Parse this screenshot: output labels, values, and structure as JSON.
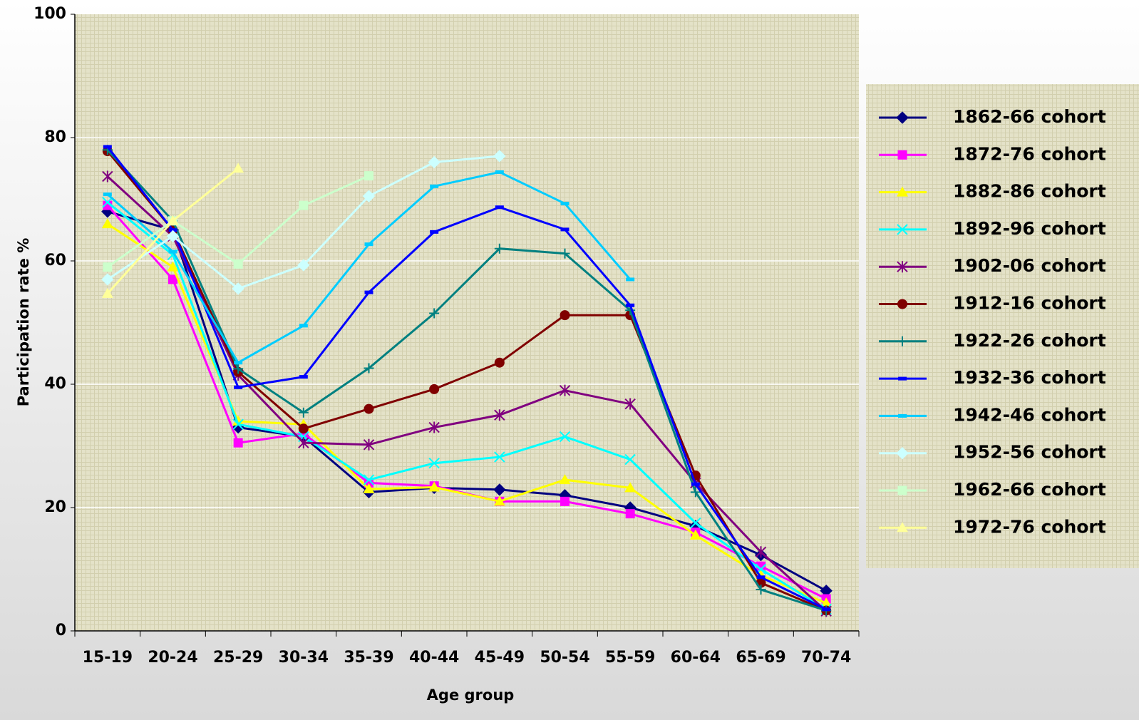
{
  "chart_data": {
    "type": "line",
    "x_label": "Age group",
    "y_label": "Participation rate %",
    "categories": [
      "15-19",
      "20-24",
      "25-29",
      "30-34",
      "35-39",
      "40-44",
      "45-49",
      "50-54",
      "55-59",
      "60-64",
      "65-69",
      "70-74"
    ],
    "ylim": [
      0,
      100
    ],
    "yticks": [
      0,
      20,
      40,
      60,
      80,
      100
    ],
    "grid": true,
    "legend": "right",
    "series": [
      {
        "name": "1862-66 cohort",
        "color": "#000080",
        "marker": "diamond",
        "values": [
          68,
          65,
          33,
          31.5,
          22.5,
          23.2,
          22.9,
          22,
          20,
          17,
          12.3,
          6.5
        ]
      },
      {
        "name": "1872-76 cohort",
        "color": "#ff00ff",
        "marker": "square",
        "values": [
          69,
          57,
          30.5,
          32,
          24,
          23.5,
          21,
          21,
          19,
          16,
          10.5,
          5.2
        ]
      },
      {
        "name": "1882-86 cohort",
        "color": "#ffff00",
        "marker": "triangle",
        "values": [
          66,
          59,
          34,
          33.5,
          23,
          23.3,
          21,
          24.5,
          23.2,
          15.5,
          9,
          4.5
        ]
      },
      {
        "name": "1892-96 cohort",
        "color": "#00ffff",
        "marker": "x",
        "values": [
          69.5,
          61,
          33.5,
          31.5,
          24.5,
          27.2,
          28.2,
          31.5,
          27.8,
          17.5,
          10,
          3.5
        ]
      },
      {
        "name": "1902-06 cohort",
        "color": "#800080",
        "marker": "star",
        "values": [
          73.7,
          64,
          41.5,
          30.5,
          30.2,
          33,
          35,
          39,
          36.8,
          24,
          12.8,
          3.2
        ]
      },
      {
        "name": "1912-16 cohort",
        "color": "#800000",
        "marker": "circle",
        "values": [
          77.8,
          65,
          42,
          32.8,
          36,
          39.2,
          43.5,
          51.2,
          51.2,
          25.2,
          7.8,
          3.3
        ]
      },
      {
        "name": "1922-26 cohort",
        "color": "#008080",
        "marker": "plus",
        "values": [
          78,
          66.5,
          42.5,
          35.4,
          42.6,
          51.5,
          62,
          61.2,
          52,
          22.5,
          6.7,
          3.3
        ]
      },
      {
        "name": "1932-36 cohort",
        "color": "#0000ff",
        "marker": "dash",
        "values": [
          78.5,
          65,
          39.5,
          41.2,
          54.9,
          64.7,
          68.7,
          65.1,
          52.8,
          23.8,
          8.7,
          3.5
        ]
      },
      {
        "name": "1942-46 cohort",
        "color": "#00ccff",
        "marker": "dash",
        "values": [
          70.8,
          61.5,
          43.5,
          49.5,
          62.7,
          72.1,
          74.4,
          69.3,
          57,
          null,
          null,
          null
        ]
      },
      {
        "name": "1952-56 cohort",
        "color": "#ccffff",
        "marker": "diamond",
        "values": [
          57,
          64,
          55.5,
          59.3,
          70.5,
          76,
          77,
          null,
          null,
          null,
          null,
          null
        ]
      },
      {
        "name": "1962-66 cohort",
        "color": "#ccffcc",
        "marker": "square",
        "values": [
          59,
          66.5,
          59.5,
          69,
          73.8,
          null,
          null,
          null,
          null,
          null,
          null,
          null
        ]
      },
      {
        "name": "1972-76 cohort",
        "color": "#ffff99",
        "marker": "triangle",
        "values": [
          54.7,
          66.5,
          75,
          null,
          null,
          null,
          null,
          null,
          null,
          null,
          null,
          null
        ]
      }
    ]
  }
}
